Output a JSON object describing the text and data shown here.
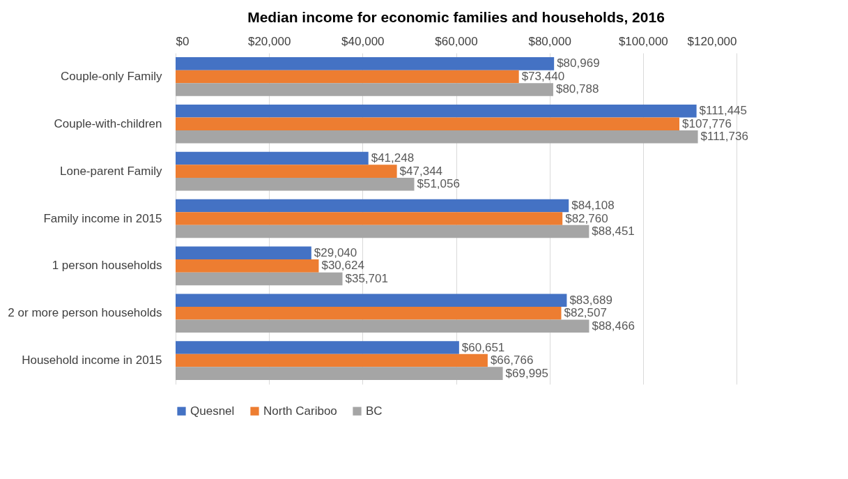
{
  "chart_data": {
    "type": "bar",
    "orientation": "horizontal",
    "title": "Median income for economic families and households, 2016",
    "categories": [
      "Couple-only Family",
      "Couple-with-children",
      "Lone-parent Family",
      "Family income in 2015",
      "1 person households",
      "2 or more person households",
      "Household income in 2015"
    ],
    "series": [
      {
        "name": "Quesnel",
        "color": "#4472c4",
        "values": [
          80969,
          111445,
          41248,
          84108,
          29040,
          83689,
          60651
        ],
        "value_labels": [
          "$80,969",
          "$111,445",
          "$41,248",
          "$84,108",
          "$29,040",
          "$83,689",
          "$60,651"
        ]
      },
      {
        "name": "North Cariboo",
        "color": "#ed7d31",
        "values": [
          73440,
          107776,
          47344,
          82760,
          30624,
          82507,
          66766
        ],
        "value_labels": [
          "$73,440",
          "$107,776",
          "$47,344",
          "$82,760",
          "$30,624",
          "$82,507",
          "$66,766"
        ]
      },
      {
        "name": "BC",
        "color": "#a5a5a5",
        "values": [
          80788,
          111736,
          51056,
          88451,
          35701,
          88466,
          69995
        ],
        "value_labels": [
          "$80,788",
          "$111,736",
          "$51,056",
          "$88,451",
          "$35,701",
          "$88,466",
          "$69,995"
        ]
      }
    ],
    "xlim": [
      0,
      120000
    ],
    "xticks": [
      {
        "value": 0,
        "label": "$0"
      },
      {
        "value": 20000,
        "label": "$20,000"
      },
      {
        "value": 40000,
        "label": "$40,000"
      },
      {
        "value": 60000,
        "label": "$60,000"
      },
      {
        "value": 80000,
        "label": "$80,000"
      },
      {
        "value": 100000,
        "label": "$100,000"
      },
      {
        "value": 120000,
        "label": "$120,000"
      }
    ],
    "grid": "x",
    "legend": "bottom"
  }
}
